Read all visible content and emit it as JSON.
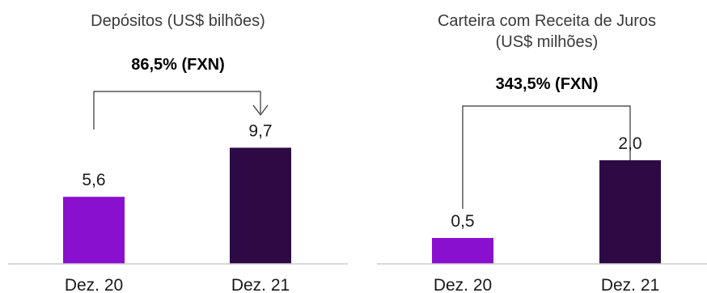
{
  "chart_data": [
    {
      "type": "bar",
      "title": "Depósitos (US$ bilhões)",
      "annotation": "86,5% (FXN)",
      "categories": [
        "Dez. 20",
        "Dez. 21"
      ],
      "values": [
        5.6,
        9.7
      ],
      "value_labels": [
        "5,6",
        "9,7"
      ],
      "colors": [
        "#8a10d0",
        "#2e0a45"
      ],
      "ylim": [
        0,
        10.5
      ]
    },
    {
      "type": "bar",
      "title": [
        "Carteira com Receita de Juros",
        "(US$ milhões)"
      ],
      "annotation": "343,5% (FXN)",
      "categories": [
        "Dez. 20",
        "Dez. 21"
      ],
      "values": [
        0.5,
        2.0
      ],
      "value_labels": [
        "0,5",
        "2,0"
      ],
      "colors": [
        "#8a10d0",
        "#2e0a45"
      ],
      "ylim": [
        0,
        3.2
      ]
    }
  ]
}
